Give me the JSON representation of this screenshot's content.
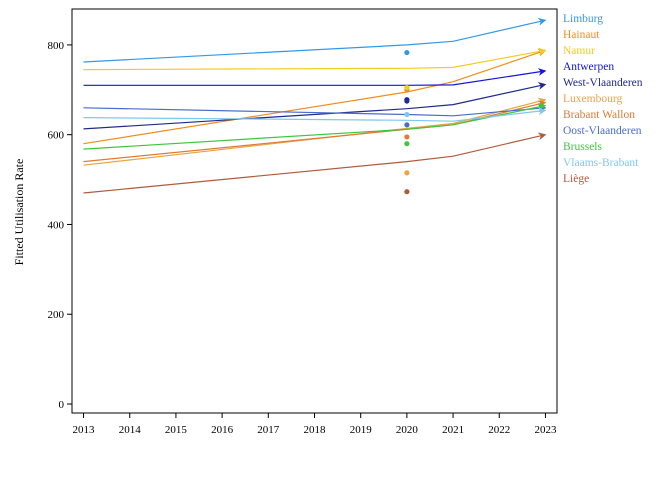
{
  "chart_data": {
    "type": "line",
    "title": "",
    "xlabel": "",
    "ylabel": "Fitted Utilisation Rate",
    "x": [
      2013,
      2014,
      2015,
      2016,
      2017,
      2018,
      2019,
      2020,
      2021,
      2022,
      2023
    ],
    "xlim": [
      2012.75,
      2023.25
    ],
    "ylim": [
      -20,
      880
    ],
    "yticks": [
      0,
      200,
      400,
      600,
      800
    ],
    "grid": false,
    "legend_position": "right",
    "series": [
      {
        "name": "Limburg",
        "color": "#3399e6",
        "line": {
          "x": [
            2013,
            2020,
            2021,
            2023
          ],
          "y": [
            762,
            800,
            808,
            855
          ]
        },
        "observed_2020": 783
      },
      {
        "name": "Hainaut",
        "color": "#f28c1a",
        "line": {
          "x": [
            2013,
            2020,
            2021,
            2023
          ],
          "y": [
            580,
            695,
            718,
            788
          ]
        },
        "observed_2020": 700
      },
      {
        "name": "Namur",
        "color": "#f5cc1c",
        "line": {
          "x": [
            2013,
            2020,
            2021,
            2023
          ],
          "y": [
            745,
            748,
            750,
            788
          ]
        },
        "observed_2020": 705
      },
      {
        "name": "Antwerpen",
        "color": "#1414d9",
        "line": {
          "x": [
            2013,
            2020,
            2021,
            2023
          ],
          "y": [
            710,
            710,
            711,
            742
          ]
        },
        "observed_2020": 678
      },
      {
        "name": "West-Vlaanderen",
        "color": "#1f2a8c",
        "line": {
          "x": [
            2013,
            2020,
            2021,
            2023
          ],
          "y": [
            613,
            658,
            667,
            712
          ]
        },
        "observed_2020": 675
      },
      {
        "name": "Luxembourg",
        "color": "#e6a640",
        "line": {
          "x": [
            2013,
            2020,
            2021,
            2023
          ],
          "y": [
            532,
            614,
            625,
            678
          ]
        },
        "observed_2020": 515
      },
      {
        "name": "Brabant Wallon",
        "color": "#e07a35",
        "line": {
          "x": [
            2013,
            2020,
            2021,
            2023
          ],
          "y": [
            540,
            612,
            622,
            672
          ]
        },
        "observed_2020": 595
      },
      {
        "name": "Oost-Vlaanderen",
        "color": "#4a6bd1",
        "line": {
          "x": [
            2013,
            2020,
            2021,
            2023
          ],
          "y": [
            660,
            645,
            642,
            660
          ]
        },
        "observed_2020": 622
      },
      {
        "name": "Brussels",
        "color": "#3cc73c",
        "line": {
          "x": [
            2013,
            2020,
            2021,
            2023
          ],
          "y": [
            568,
            612,
            622,
            665
          ]
        },
        "observed_2020": 580
      },
      {
        "name": "Vlaams-Brabant",
        "color": "#7ec8f0",
        "line": {
          "x": [
            2013,
            2020,
            2021,
            2023
          ],
          "y": [
            638,
            632,
            630,
            654
          ]
        },
        "observed_2020": 645
      },
      {
        "name": "Liège",
        "color": "#b05a3c",
        "line": {
          "x": [
            2013,
            2020,
            2021,
            2023
          ],
          "y": [
            470,
            540,
            552,
            600
          ]
        },
        "observed_2020": 473
      }
    ]
  }
}
